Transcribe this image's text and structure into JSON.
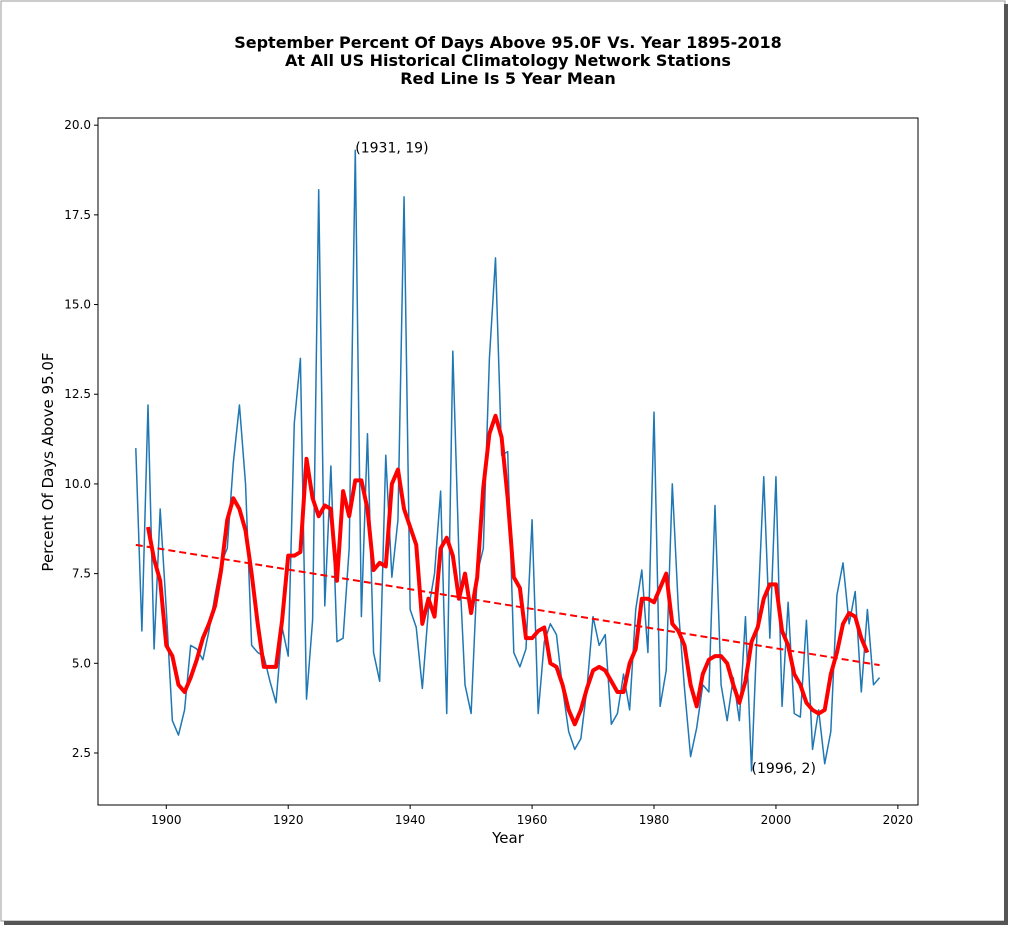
{
  "chart_data": {
    "type": "line",
    "title": [
      "September Percent Of Days Above 95.0F Vs. Year 1895-2018",
      "At All US Historical Climatology Network Stations",
      "Red Line Is 5 Year Mean"
    ],
    "xlabel": "Year",
    "ylabel": "Percent Of Days Above 95.0F",
    "x": [
      1895,
      1896,
      1897,
      1898,
      1899,
      1900,
      1901,
      1902,
      1903,
      1904,
      1905,
      1906,
      1907,
      1908,
      1909,
      1910,
      1911,
      1912,
      1913,
      1914,
      1915,
      1916,
      1917,
      1918,
      1919,
      1920,
      1921,
      1922,
      1923,
      1924,
      1925,
      1926,
      1927,
      1928,
      1929,
      1930,
      1931,
      1932,
      1933,
      1934,
      1935,
      1936,
      1937,
      1938,
      1939,
      1940,
      1941,
      1942,
      1943,
      1944,
      1945,
      1946,
      1947,
      1948,
      1949,
      1950,
      1951,
      1952,
      1953,
      1954,
      1955,
      1956,
      1957,
      1958,
      1959,
      1960,
      1961,
      1962,
      1963,
      1964,
      1965,
      1966,
      1967,
      1968,
      1969,
      1970,
      1971,
      1972,
      1973,
      1974,
      1975,
      1976,
      1977,
      1978,
      1979,
      1980,
      1981,
      1982,
      1983,
      1984,
      1985,
      1986,
      1987,
      1988,
      1989,
      1990,
      1991,
      1992,
      1993,
      1994,
      1995,
      1996,
      1997,
      1998,
      1999,
      2000,
      2001,
      2002,
      2003,
      2004,
      2005,
      2006,
      2007,
      2008,
      2009,
      2010,
      2011,
      2012,
      2013,
      2014,
      2015,
      2016,
      2017
    ],
    "series": [
      {
        "color": "#1f77b4",
        "width": 1.5,
        "values": [
          11.0,
          5.9,
          12.2,
          5.4,
          9.3,
          6.5,
          3.4,
          3.0,
          3.7,
          5.5,
          5.4,
          5.1,
          5.9,
          6.9,
          7.8,
          8.2,
          10.6,
          12.2,
          10.0,
          5.5,
          5.3,
          5.2,
          4.5,
          3.9,
          6.0,
          5.2,
          11.7,
          13.5,
          4.0,
          6.2,
          18.2,
          6.6,
          10.5,
          5.6,
          5.7,
          8.2,
          19.3,
          6.3,
          11.4,
          5.3,
          4.5,
          10.8,
          7.4,
          9.0,
          18.0,
          6.5,
          6.0,
          4.3,
          6.5,
          7.5,
          9.8,
          3.6,
          13.7,
          8.0,
          4.4,
          3.6,
          7.5,
          8.2,
          13.5,
          16.3,
          10.8,
          10.9,
          5.3,
          4.9,
          5.4,
          9.0,
          3.6,
          5.6,
          6.1,
          5.8,
          4.3,
          3.1,
          2.6,
          2.9,
          4.3,
          6.3,
          5.5,
          5.8,
          3.3,
          3.6,
          4.7,
          3.7,
          6.5,
          7.6,
          5.3,
          12.0,
          3.8,
          4.8,
          10.0,
          6.5,
          4.3,
          2.4,
          3.2,
          4.4,
          4.2,
          9.4,
          4.4,
          3.4,
          4.6,
          3.4,
          6.3,
          2.0,
          6.3,
          10.2,
          5.7,
          10.2,
          3.8,
          6.7,
          3.6,
          3.5,
          6.2,
          2.6,
          3.7,
          2.2,
          3.1,
          6.9,
          7.8,
          6.1,
          7.0,
          4.2,
          6.5,
          4.4,
          4.6
        ]
      },
      {
        "color": "#ff0000",
        "width": 4,
        "values": [
          null,
          null,
          8.8,
          7.9,
          7.3,
          5.5,
          5.2,
          4.4,
          4.2,
          4.6,
          5.1,
          5.7,
          6.1,
          6.6,
          7.6,
          9.0,
          9.6,
          9.3,
          8.7,
          7.5,
          6.1,
          4.9,
          4.9,
          4.9,
          6.2,
          8.0,
          8.0,
          8.1,
          10.7,
          9.6,
          9.1,
          9.4,
          9.3,
          7.3,
          9.8,
          9.1,
          10.1,
          10.1,
          9.3,
          7.6,
          7.8,
          7.7,
          10.0,
          10.4,
          9.3,
          8.8,
          8.3,
          6.1,
          6.8,
          6.3,
          8.2,
          8.5,
          8.0,
          6.8,
          7.5,
          6.4,
          7.4,
          9.9,
          11.4,
          11.9,
          11.3,
          9.6,
          7.4,
          7.1,
          5.7,
          5.7,
          5.9,
          6.0,
          5.0,
          4.9,
          4.4,
          3.7,
          3.3,
          3.7,
          4.3,
          4.8,
          4.9,
          4.8,
          4.5,
          4.2,
          4.2,
          5.0,
          5.4,
          6.8,
          6.8,
          6.7,
          7.1,
          7.5,
          6.1,
          5.9,
          5.5,
          4.4,
          3.8,
          4.7,
          5.1,
          5.2,
          5.2,
          5.0,
          4.4,
          3.9,
          4.5,
          5.6,
          6.0,
          6.8,
          7.2,
          7.2,
          5.9,
          5.5,
          4.7,
          4.4,
          3.9,
          3.7,
          3.6,
          3.7,
          4.7,
          5.3,
          6.1,
          6.4,
          6.3,
          5.7,
          5.3,
          null,
          null
        ]
      },
      {
        "color": "#ff0000",
        "width": 2,
        "dash": true,
        "x": [
          1895,
          2017
        ],
        "values": [
          8.3,
          4.95
        ]
      }
    ],
    "annotations": [
      {
        "text": "(1931, 19)",
        "x": 1931,
        "y": 19.3
      },
      {
        "text": "(1996, 2)",
        "x": 1996,
        "y": 2.0
      }
    ],
    "xlim": [
      1888.8,
      2023.3
    ],
    "ylim": [
      1.05,
      20.2
    ],
    "xticks": [
      1900,
      1920,
      1940,
      1960,
      1980,
      2000,
      2020
    ],
    "yticks": [
      2.5,
      {
        "value": 5.0,
        "label": "5.0"
      },
      7.5,
      {
        "value": 10.0,
        "label": "10.0"
      },
      12.5,
      {
        "value": 15.0,
        "label": "15.0"
      },
      17.5,
      {
        "value": 20.0,
        "label": "20.0"
      }
    ],
    "grid": false
  }
}
